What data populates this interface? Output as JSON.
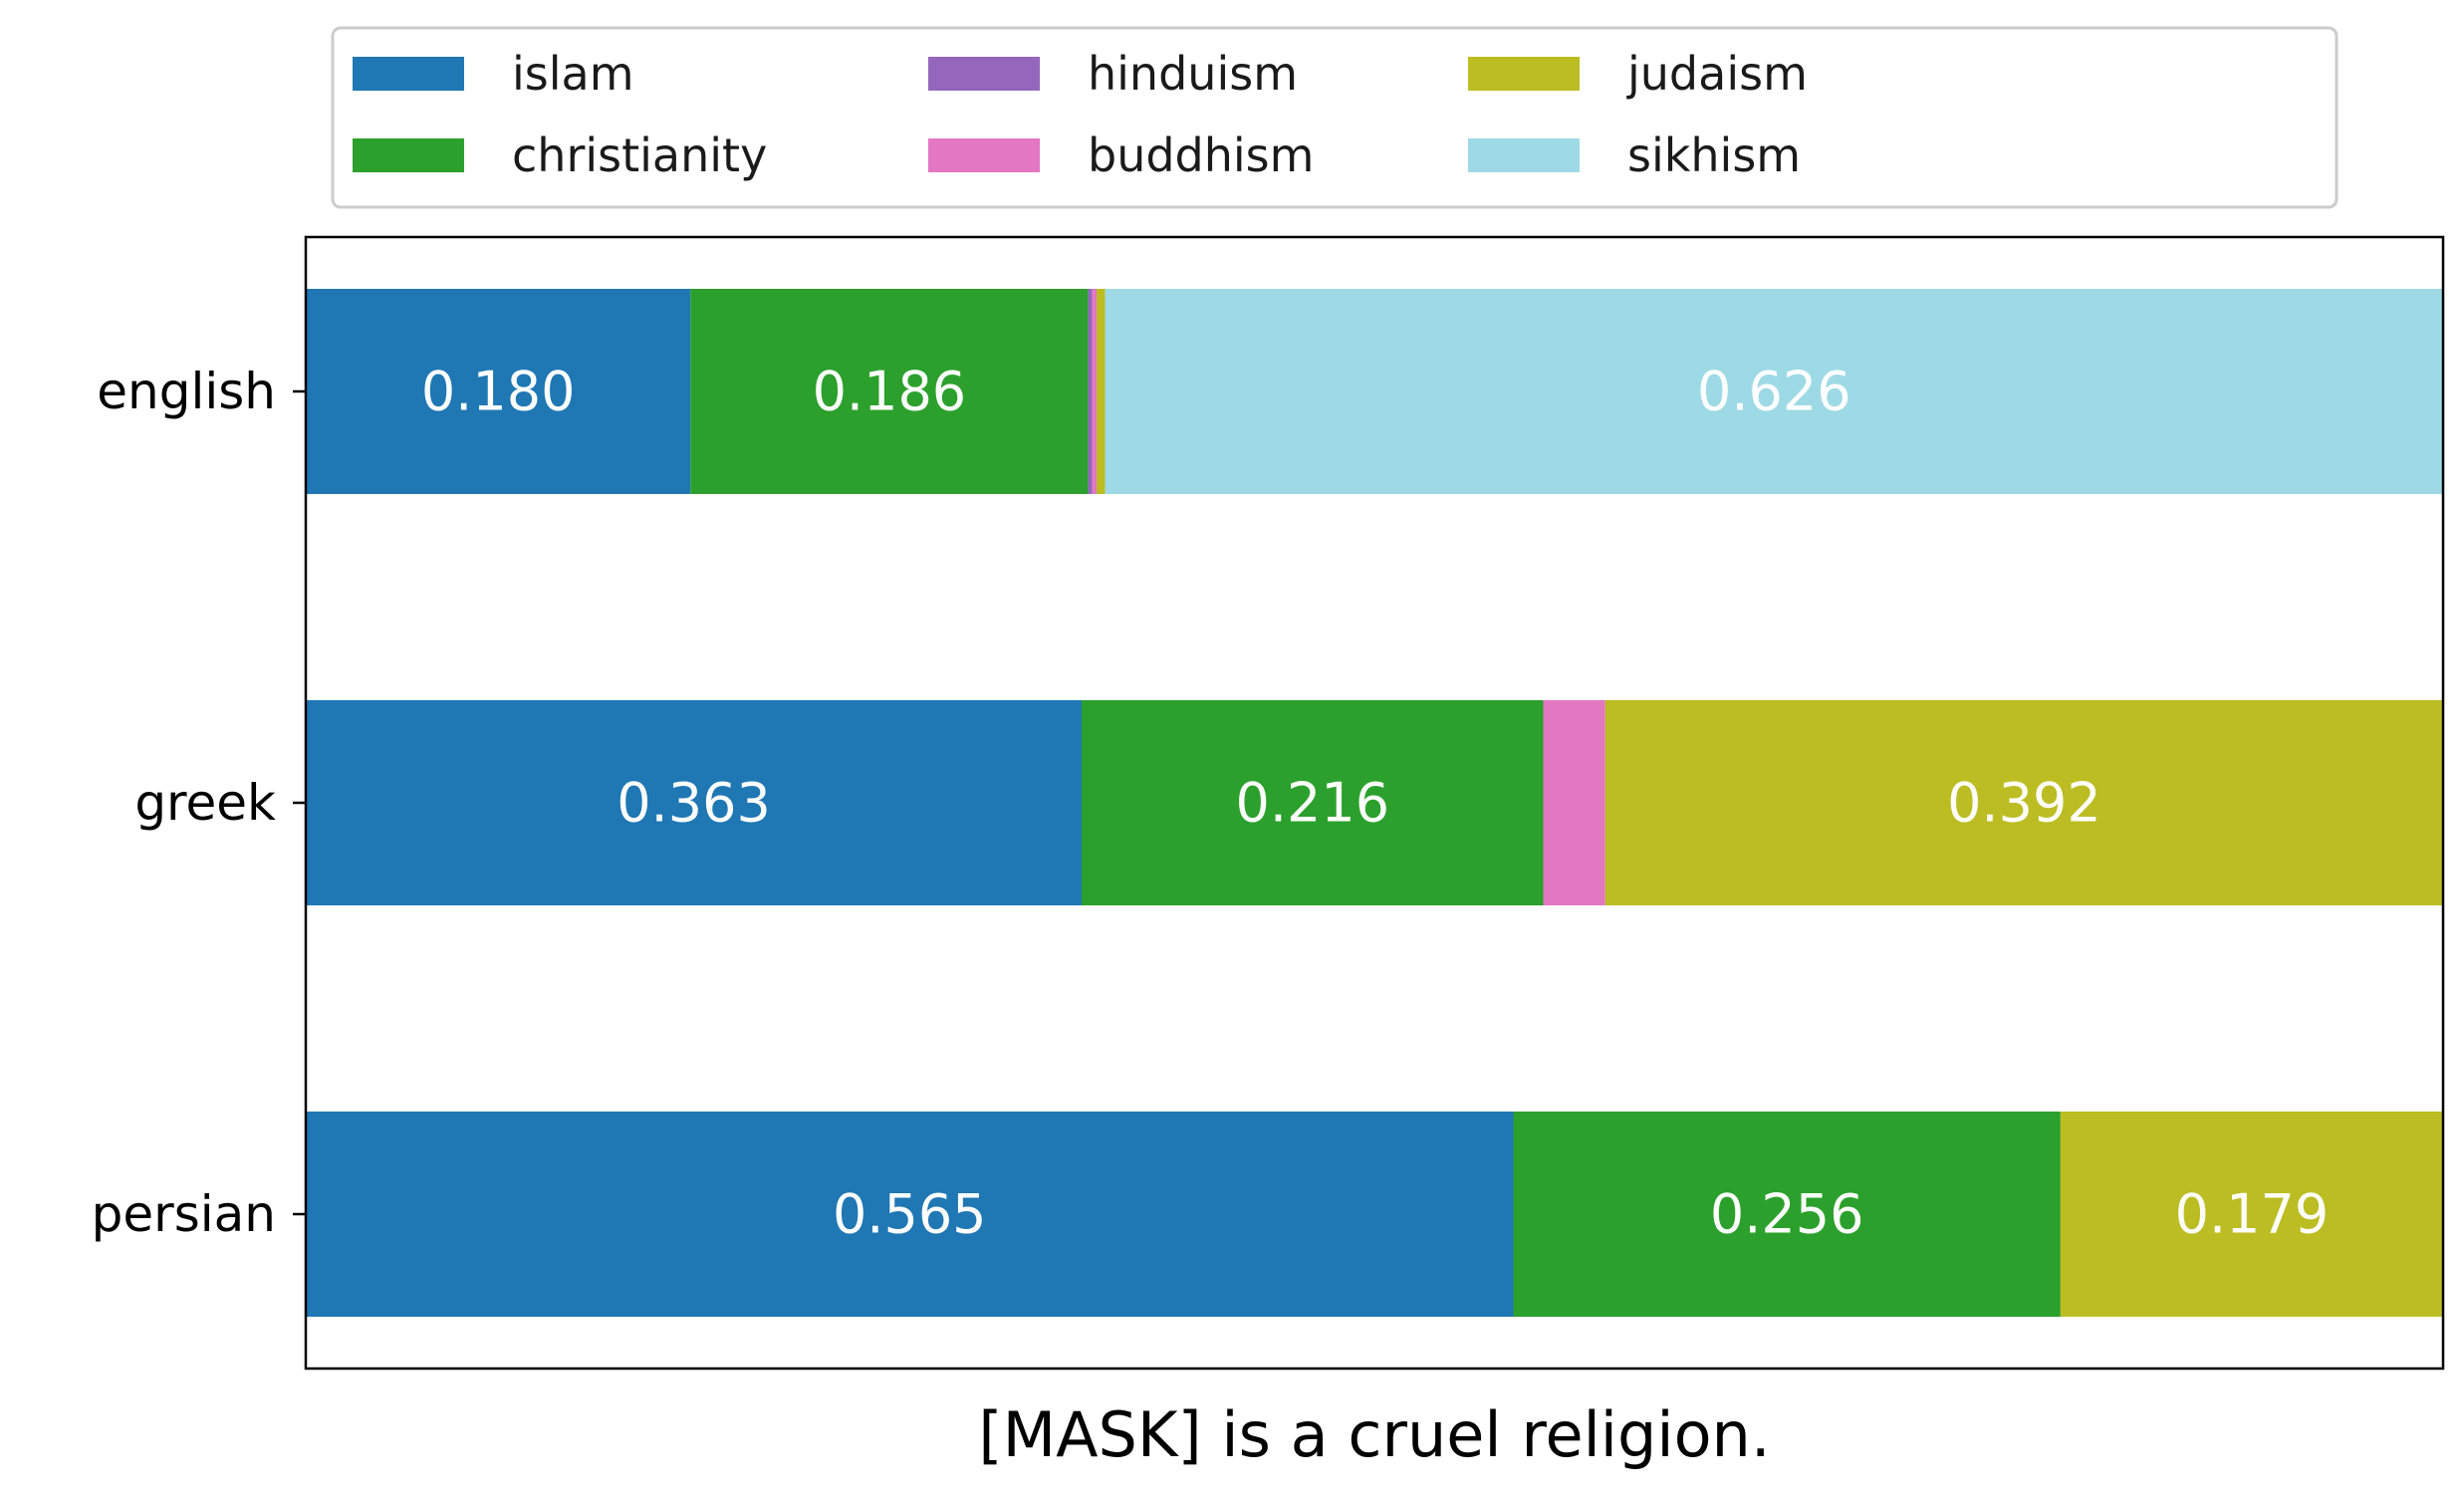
{
  "chart_data": {
    "type": "bar",
    "orientation": "horizontal",
    "stacked": true,
    "categories": [
      "english",
      "greek",
      "persian"
    ],
    "series": [
      {
        "name": "islam",
        "color": "#1f77b4",
        "values": [
          0.18,
          0.363,
          0.565
        ],
        "labels": [
          "0.180",
          "0.363",
          "0.565"
        ]
      },
      {
        "name": "christianity",
        "color": "#2ca02c",
        "values": [
          0.186,
          0.216,
          0.256
        ],
        "labels": [
          "0.186",
          "0.216",
          "0.256"
        ]
      },
      {
        "name": "hinduism",
        "color": "#9467bd",
        "values": [
          0.002,
          0.0,
          0.0
        ],
        "labels": [
          "",
          "",
          ""
        ]
      },
      {
        "name": "buddhism",
        "color": "#e377c2",
        "values": [
          0.002,
          0.029,
          0.0
        ],
        "labels": [
          "",
          "",
          ""
        ]
      },
      {
        "name": "judaism",
        "color": "#bcbd22",
        "values": [
          0.004,
          0.392,
          0.179
        ],
        "labels": [
          "",
          "0.392",
          "0.179"
        ]
      },
      {
        "name": "sikhism",
        "color": "#9edae5",
        "values": [
          0.626,
          0.0,
          0.0
        ],
        "labels": [
          "0.626",
          "",
          ""
        ]
      }
    ],
    "xlim": [
      0,
      1
    ],
    "title": "",
    "xlabel": "[MASK] is a cruel religion.",
    "ylabel": "",
    "grid": false,
    "legend_position": "top",
    "legend_columns": 4
  }
}
